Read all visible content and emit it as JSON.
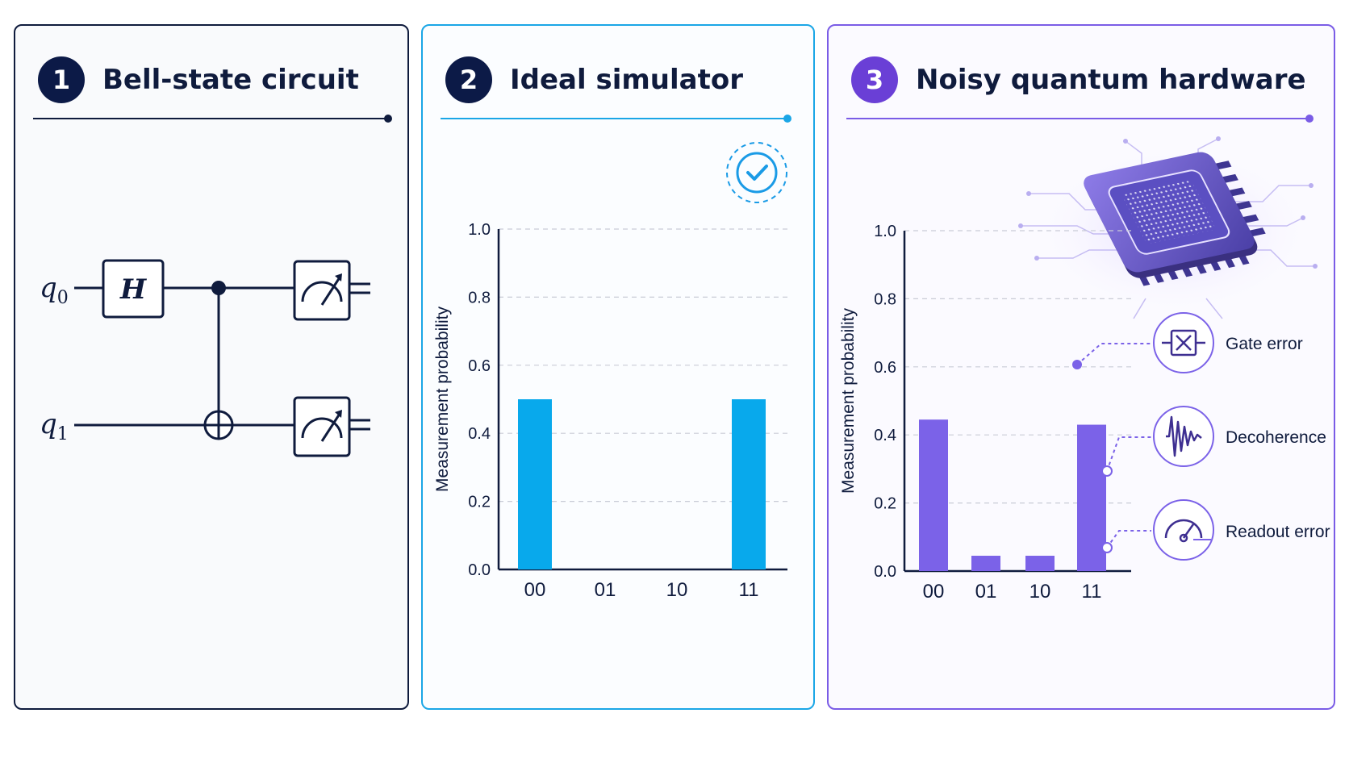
{
  "panels": [
    {
      "number": "1",
      "title": "Bell-state circuit"
    },
    {
      "number": "2",
      "title": "Ideal simulator"
    },
    {
      "number": "3",
      "title": "Noisy quantum hardware"
    }
  ],
  "circuit": {
    "qubits": [
      {
        "symbol": "q",
        "subscript": "0"
      },
      {
        "symbol": "q",
        "subscript": "1"
      }
    ],
    "gates": [
      "H",
      "CNOT",
      "measure",
      "measure"
    ],
    "hadamard_label": "H",
    "icons": [
      "measurement-meter-icon",
      "cnot-target-icon",
      "control-dot-icon"
    ]
  },
  "ideal_status_icon": "check-circle-icon",
  "hardware_icon": "quantum-chip-icon",
  "chart_data": [
    {
      "type": "bar",
      "categories": [
        "00",
        "01",
        "10",
        "11"
      ],
      "values": [
        0.5,
        0.0,
        0.0,
        0.5
      ],
      "ylabel": "Measurement probability",
      "ylim": [
        0,
        1
      ],
      "yticks": [
        "0.0",
        "0.2",
        "0.4",
        "0.6",
        "0.8",
        "1.0"
      ],
      "grid": true,
      "color": "#08a9ec"
    },
    {
      "type": "bar",
      "categories": [
        "00",
        "01",
        "10",
        "11"
      ],
      "values": [
        0.445,
        0.045,
        0.045,
        0.43
      ],
      "ylabel": "Measurement probability",
      "ylim": [
        0,
        1
      ],
      "yticks": [
        "0.0",
        "0.2",
        "0.4",
        "0.6",
        "0.8",
        "1.0"
      ],
      "grid": true,
      "color": "#7b62e8"
    }
  ],
  "noise_sources": [
    {
      "label": "Gate error",
      "icon": "gate-error-icon"
    },
    {
      "label": "Decoherence",
      "icon": "decoherence-wave-icon"
    },
    {
      "label": "Readout error",
      "icon": "readout-gauge-icon"
    }
  ],
  "colors": {
    "navy": "#0f1b3d",
    "ideal": "#08a9ec",
    "noisy": "#7b62e8",
    "accent_purple": "#6a3fd6"
  }
}
